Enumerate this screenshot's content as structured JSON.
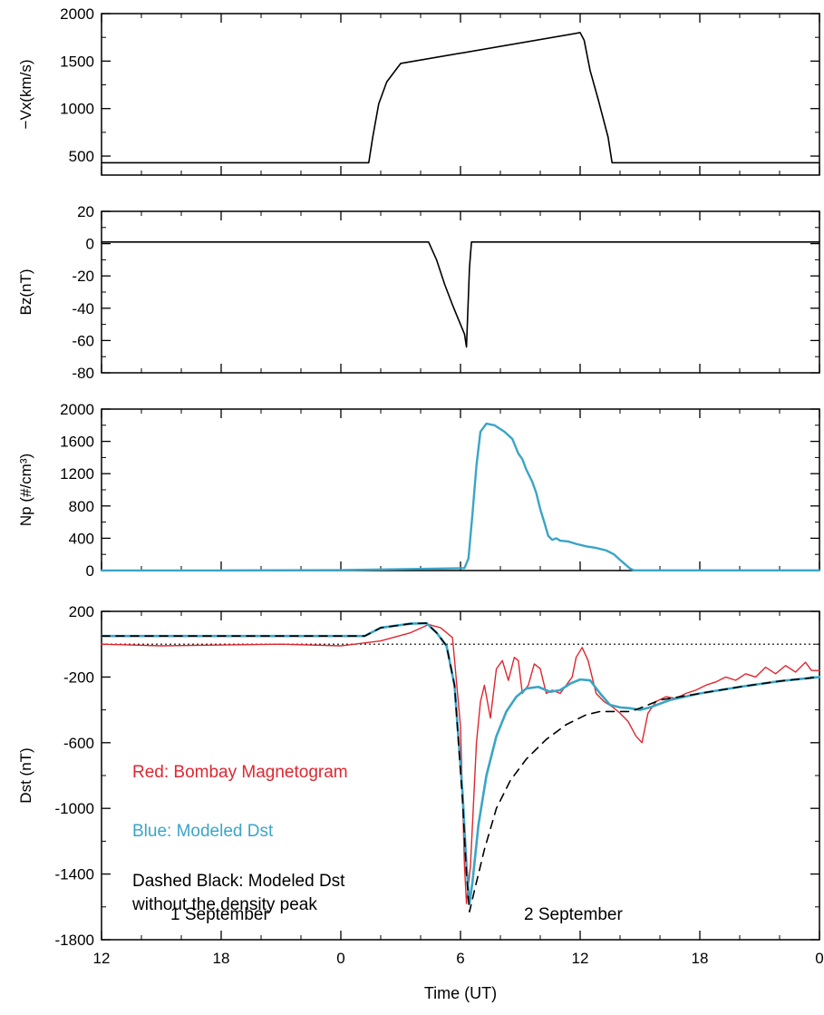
{
  "colors": {
    "axis": "#000000",
    "red": "#e0262f",
    "blue": "#3aa5c6",
    "black": "#000000"
  },
  "xaxis": {
    "label": "Time (UT)",
    "ticks": [
      {
        "v": 0,
        "label": "12"
      },
      {
        "v": 6,
        "label": "18"
      },
      {
        "v": 12,
        "label": "0"
      },
      {
        "v": 18,
        "label": "6"
      },
      {
        "v": 24,
        "label": "12"
      },
      {
        "v": 30,
        "label": "18"
      },
      {
        "v": 36,
        "label": "0"
      }
    ]
  },
  "chart_data": [
    {
      "id": "vx",
      "type": "line",
      "ylabel": "−Vx(km/s)",
      "xlim": [
        0,
        36
      ],
      "ylim": [
        300,
        2000
      ],
      "yticks": [
        500,
        1000,
        1500,
        2000
      ],
      "yticklabels": [
        "500",
        "1000",
        "1500",
        "2000"
      ],
      "series": [
        {
          "color": "black",
          "points": [
            [
              0,
              430
            ],
            [
              13.4,
              430
            ],
            [
              13.6,
              700
            ],
            [
              13.9,
              1050
            ],
            [
              14.3,
              1280
            ],
            [
              14.8,
              1420
            ],
            [
              15.0,
              1475
            ],
            [
              24.0,
              1800
            ],
            [
              24.2,
              1720
            ],
            [
              24.5,
              1400
            ],
            [
              24.9,
              1100
            ],
            [
              25.4,
              700
            ],
            [
              25.6,
              430
            ],
            [
              36,
              430
            ]
          ]
        }
      ]
    },
    {
      "id": "bz",
      "type": "line",
      "ylabel": "Bz(nT)",
      "xlim": [
        0,
        36
      ],
      "ylim": [
        -80,
        20
      ],
      "yticks": [
        -80,
        -60,
        -40,
        -20,
        0,
        20
      ],
      "yticklabels": [
        "-80",
        "-60",
        "-40",
        "-20",
        "0",
        "20"
      ],
      "series": [
        {
          "color": "black",
          "points": [
            [
              0,
              1
            ],
            [
              16.4,
              1
            ],
            [
              16.8,
              -10
            ],
            [
              17.2,
              -25
            ],
            [
              17.6,
              -38
            ],
            [
              17.9,
              -47
            ],
            [
              18.2,
              -56
            ],
            [
              18.3,
              -64
            ],
            [
              18.45,
              -15
            ],
            [
              18.55,
              1
            ],
            [
              36,
              1
            ]
          ]
        }
      ]
    },
    {
      "id": "np",
      "type": "line",
      "ylabel": "Np (#/cm³)",
      "xlim": [
        0,
        36
      ],
      "ylim": [
        0,
        2000
      ],
      "yticks": [
        0,
        400,
        800,
        1200,
        1600,
        2000
      ],
      "yticklabels": [
        "0",
        "400",
        "800",
        "1200",
        "1600",
        "2000"
      ],
      "series": [
        {
          "color": "blue",
          "points": [
            [
              0,
              1
            ],
            [
              6,
              1
            ],
            [
              12,
              5
            ],
            [
              16,
              20
            ],
            [
              18.2,
              30
            ],
            [
              18.4,
              150
            ],
            [
              18.6,
              700
            ],
            [
              18.8,
              1300
            ],
            [
              19.0,
              1720
            ],
            [
              19.3,
              1820
            ],
            [
              19.7,
              1800
            ],
            [
              20.2,
              1720
            ],
            [
              20.6,
              1630
            ],
            [
              20.9,
              1450
            ],
            [
              21.1,
              1380
            ],
            [
              21.3,
              1250
            ],
            [
              21.6,
              1100
            ],
            [
              21.8,
              960
            ],
            [
              22.0,
              760
            ],
            [
              22.2,
              600
            ],
            [
              22.4,
              430
            ],
            [
              22.6,
              380
            ],
            [
              22.8,
              400
            ],
            [
              23.0,
              370
            ],
            [
              23.4,
              360
            ],
            [
              23.8,
              330
            ],
            [
              24.3,
              300
            ],
            [
              24.8,
              280
            ],
            [
              25.3,
              250
            ],
            [
              25.7,
              200
            ],
            [
              26.1,
              110
            ],
            [
              26.5,
              25
            ],
            [
              26.7,
              2
            ],
            [
              36,
              2
            ]
          ]
        }
      ]
    },
    {
      "id": "dst",
      "type": "line",
      "ylabel": "Dst (nT)",
      "xlim": [
        0,
        36
      ],
      "ylim": [
        -1800,
        200
      ],
      "yticks": [
        -1800,
        -1400,
        -1000,
        -600,
        -200,
        200
      ],
      "yticklabels": [
        "-1800",
        "-1400",
        "-1000",
        "-600",
        "-200",
        "200"
      ],
      "dotted_zero": true,
      "annotations": [
        {
          "text": "Red:  Bombay Magnetogram",
          "color": "red"
        },
        {
          "text": "Blue:  Modeled Dst",
          "color": "blue"
        },
        {
          "text": "Dashed Black:  Modeled Dst",
          "color": "black"
        },
        {
          "text": "without the density peak",
          "color": "black"
        },
        {
          "text": "1 September",
          "color": "black"
        },
        {
          "text": "2 September",
          "color": "black"
        }
      ],
      "series": [
        {
          "color": "red",
          "width": 1.4,
          "points": [
            [
              0,
              0
            ],
            [
              3,
              -10
            ],
            [
              6,
              -5
            ],
            [
              9,
              0
            ],
            [
              12,
              -10
            ],
            [
              14,
              20
            ],
            [
              15.5,
              70
            ],
            [
              16.4,
              120
            ],
            [
              17.0,
              100
            ],
            [
              17.6,
              40
            ],
            [
              18.0,
              -500
            ],
            [
              18.2,
              -1350
            ],
            [
              18.3,
              -1580
            ],
            [
              18.5,
              -1350
            ],
            [
              18.8,
              -600
            ],
            [
              19.0,
              -350
            ],
            [
              19.2,
              -250
            ],
            [
              19.5,
              -450
            ],
            [
              19.8,
              -150
            ],
            [
              20.1,
              -100
            ],
            [
              20.4,
              -220
            ],
            [
              20.7,
              -80
            ],
            [
              20.9,
              -100
            ],
            [
              21.1,
              -300
            ],
            [
              21.4,
              -250
            ],
            [
              21.7,
              -120
            ],
            [
              22.0,
              -150
            ],
            [
              22.3,
              -300
            ],
            [
              22.6,
              -280
            ],
            [
              23.0,
              -300
            ],
            [
              23.3,
              -250
            ],
            [
              23.6,
              -200
            ],
            [
              23.8,
              -80
            ],
            [
              24.1,
              -20
            ],
            [
              24.4,
              -100
            ],
            [
              24.8,
              -300
            ],
            [
              25.2,
              -350
            ],
            [
              25.6,
              -380
            ],
            [
              26.0,
              -420
            ],
            [
              26.4,
              -470
            ],
            [
              26.8,
              -560
            ],
            [
              27.1,
              -600
            ],
            [
              27.4,
              -420
            ],
            [
              27.8,
              -350
            ],
            [
              28.3,
              -320
            ],
            [
              28.8,
              -330
            ],
            [
              29.3,
              -300
            ],
            [
              29.8,
              -280
            ],
            [
              30.3,
              -250
            ],
            [
              30.8,
              -230
            ],
            [
              31.3,
              -200
            ],
            [
              31.8,
              -220
            ],
            [
              32.3,
              -180
            ],
            [
              32.8,
              -200
            ],
            [
              33.3,
              -140
            ],
            [
              33.8,
              -180
            ],
            [
              34.3,
              -130
            ],
            [
              34.8,
              -170
            ],
            [
              35.3,
              -110
            ],
            [
              35.6,
              -160
            ],
            [
              36,
              -160
            ]
          ]
        },
        {
          "color": "blue",
          "width": 2.6,
          "points": [
            [
              0,
              50
            ],
            [
              13.2,
              50
            ],
            [
              14.0,
              100
            ],
            [
              15.5,
              125
            ],
            [
              16.3,
              128
            ],
            [
              16.8,
              70
            ],
            [
              17.3,
              -10
            ],
            [
              17.7,
              -250
            ],
            [
              18.1,
              -900
            ],
            [
              18.3,
              -1350
            ],
            [
              18.45,
              -1580
            ],
            [
              18.6,
              -1450
            ],
            [
              18.9,
              -1100
            ],
            [
              19.3,
              -800
            ],
            [
              19.8,
              -560
            ],
            [
              20.3,
              -410
            ],
            [
              20.8,
              -320
            ],
            [
              21.3,
              -270
            ],
            [
              21.9,
              -260
            ],
            [
              22.5,
              -290
            ],
            [
              23.0,
              -280
            ],
            [
              23.5,
              -240
            ],
            [
              24.0,
              -215
            ],
            [
              24.5,
              -220
            ],
            [
              25.0,
              -300
            ],
            [
              25.5,
              -370
            ],
            [
              26.0,
              -385
            ],
            [
              26.5,
              -390
            ],
            [
              27.0,
              -400
            ],
            [
              27.5,
              -385
            ],
            [
              28.5,
              -340
            ],
            [
              30,
              -300
            ],
            [
              32,
              -260
            ],
            [
              34,
              -225
            ],
            [
              36,
              -200
            ]
          ]
        },
        {
          "color": "black",
          "dashed": true,
          "width": 1.6,
          "points": [
            [
              0,
              50
            ],
            [
              13.2,
              50
            ],
            [
              14.0,
              100
            ],
            [
              15.5,
              125
            ],
            [
              16.3,
              128
            ],
            [
              16.8,
              70
            ],
            [
              17.3,
              -10
            ],
            [
              17.7,
              -250
            ],
            [
              18.1,
              -950
            ],
            [
              18.3,
              -1400
            ],
            [
              18.45,
              -1630
            ],
            [
              18.7,
              -1500
            ],
            [
              19.2,
              -1250
            ],
            [
              19.8,
              -1000
            ],
            [
              20.5,
              -830
            ],
            [
              21.3,
              -700
            ],
            [
              22.3,
              -580
            ],
            [
              23.3,
              -490
            ],
            [
              24.3,
              -430
            ],
            [
              25.0,
              -410
            ],
            [
              25.7,
              -410
            ],
            [
              26.5,
              -410
            ],
            [
              27.0,
              -390
            ],
            [
              28.0,
              -340
            ],
            [
              30,
              -300
            ],
            [
              32,
              -260
            ],
            [
              34,
              -225
            ],
            [
              36,
              -200
            ]
          ]
        }
      ]
    }
  ]
}
